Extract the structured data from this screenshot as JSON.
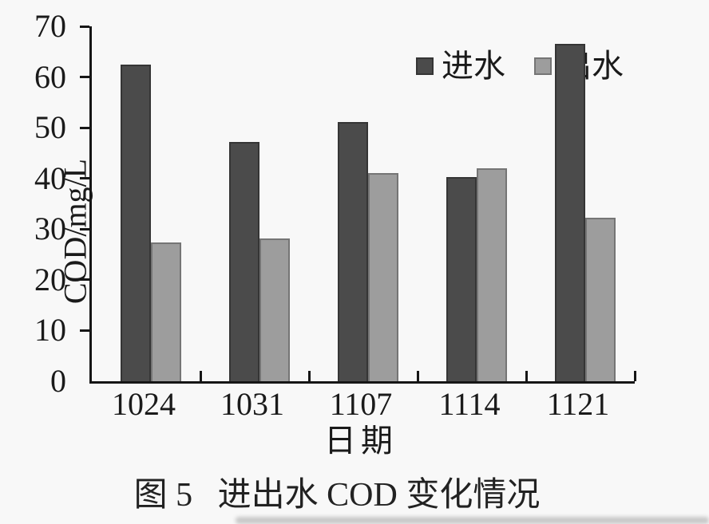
{
  "figure": {
    "caption": "图 5   进出水 COD 变化情况"
  },
  "chart_data": {
    "type": "bar",
    "title": "",
    "categories": [
      "1024",
      "1031",
      "1107",
      "1114",
      "1121"
    ],
    "series": [
      {
        "name": "进水",
        "color": "#4b4b4b",
        "border_color": "#353535",
        "values": [
          62.5,
          47.2,
          51.2,
          40.2,
          66.5
        ]
      },
      {
        "name": "出水",
        "color": "#9d9d9d",
        "border_color": "#757575",
        "values": [
          27.3,
          28.2,
          41.0,
          42.0,
          32.3
        ]
      }
    ],
    "xlabel": "日期",
    "ylabel": "COD/mg/L",
    "ylim": [
      0,
      70
    ],
    "yticks": [
      0,
      10,
      20,
      30,
      40,
      50,
      60,
      70
    ],
    "grid": false,
    "legend_position": "inside-top-center",
    "axis_color": "#161616"
  }
}
